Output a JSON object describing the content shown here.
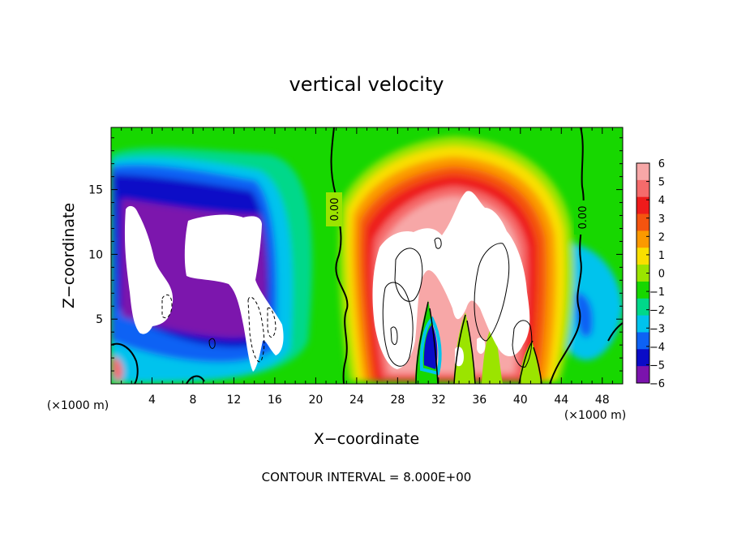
{
  "chart_data": {
    "type": "heatmap",
    "title": "vertical velocity",
    "xlabel": "X−coordinate",
    "ylabel": "Z−coordinate",
    "x_unit_label": "(×1000 m)",
    "footer": "CONTOUR INTERVAL = 8.000E+00",
    "xlim": [
      0,
      50
    ],
    "ylim": [
      0,
      19.8
    ],
    "x_ticks": [
      4,
      8,
      12,
      16,
      20,
      24,
      28,
      32,
      36,
      40,
      44,
      48
    ],
    "y_ticks": [
      5,
      10,
      15
    ],
    "colorbar": {
      "levels": [
        6,
        5,
        4,
        3,
        2,
        1,
        0,
        -1,
        -2,
        -3,
        -4,
        -5,
        -6
      ],
      "labels": [
        "6",
        "5",
        "4",
        "3",
        "2",
        "1",
        "0",
        "−1",
        "−2",
        "−3",
        "−4",
        "−5",
        "−6"
      ],
      "colors": [
        "#f7a7a7",
        "#f56b6b",
        "#ee1b1b",
        "#f4540f",
        "#fb9900",
        "#f9df00",
        "#9be400",
        "#17d700",
        "#00d88a",
        "#00c3ed",
        "#0d62f4",
        "#0a0bc7",
        "#7b13ad"
      ]
    },
    "zero_contour_labels": [
      "0.00",
      "0.00"
    ],
    "contour_interval": 8.0
  }
}
